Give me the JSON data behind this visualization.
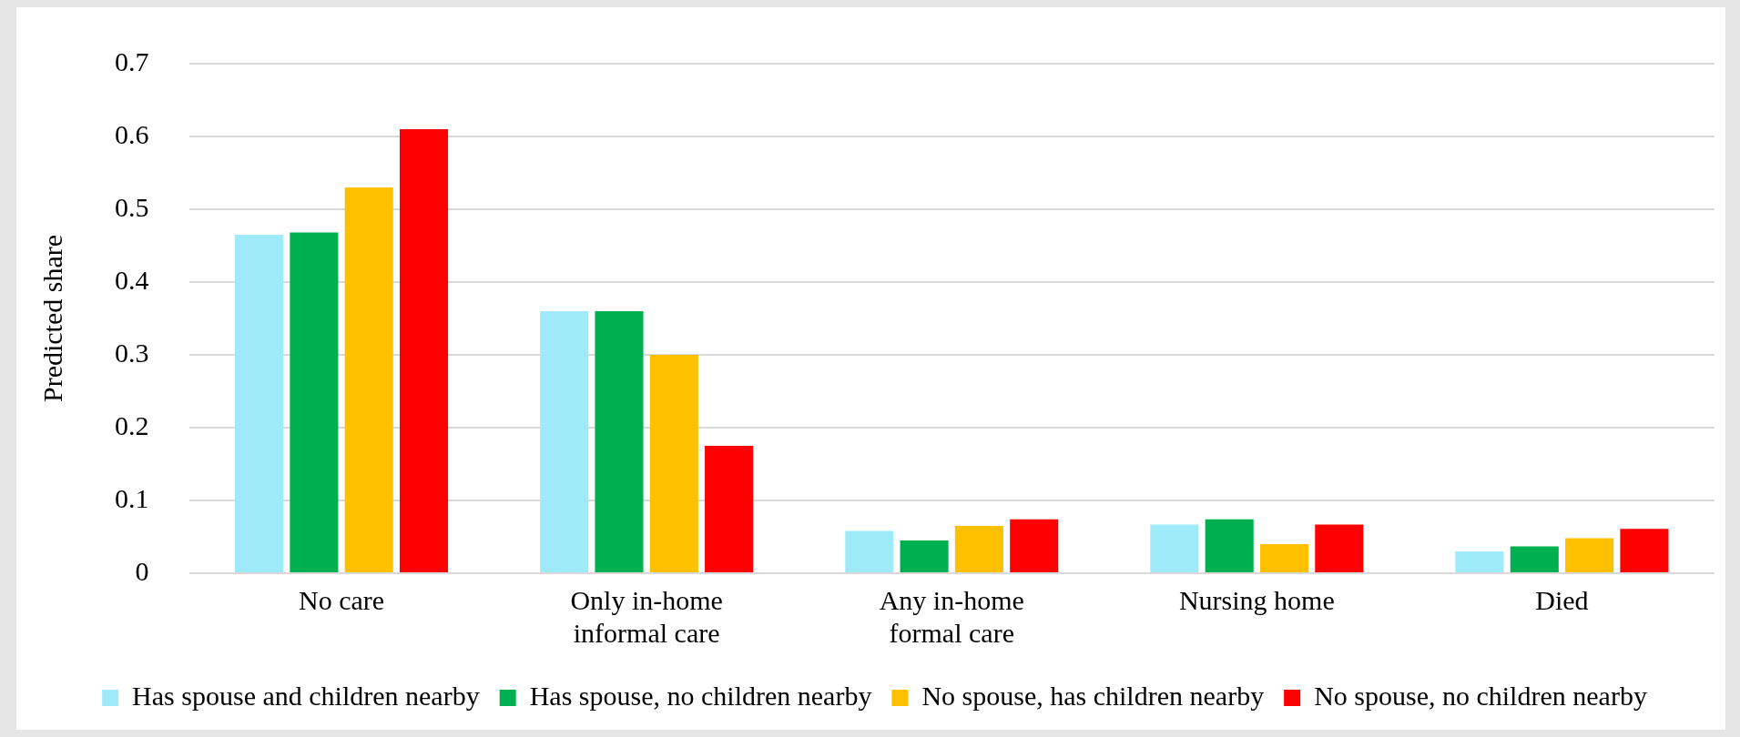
{
  "chart_data": {
    "type": "bar",
    "ylabel": "Predicted share",
    "categories": [
      "No care",
      "Only in-home informal care",
      "Any in-home formal care",
      "Nursing home",
      "Died"
    ],
    "series": [
      {
        "name": "Has spouse and children nearby",
        "color": "#9feaf9",
        "values": [
          0.465,
          0.36,
          0.058,
          0.067,
          0.03
        ]
      },
      {
        "name": "Has spouse, no children nearby",
        "color": "#00b050",
        "values": [
          0.468,
          0.36,
          0.045,
          0.074,
          0.037
        ]
      },
      {
        "name": "No spouse, has children nearby",
        "color": "#ffc000",
        "values": [
          0.53,
          0.3,
          0.065,
          0.04,
          0.048
        ]
      },
      {
        "name": "No spouse, no children nearby",
        "color": "#ff0000",
        "values": [
          0.61,
          0.175,
          0.074,
          0.067,
          0.061
        ]
      }
    ],
    "ylim": [
      0,
      0.7
    ],
    "yticks": [
      0,
      0.1,
      0.2,
      0.3,
      0.4,
      0.5,
      0.6,
      0.7
    ],
    "grid": "y",
    "legend": "bottom"
  }
}
